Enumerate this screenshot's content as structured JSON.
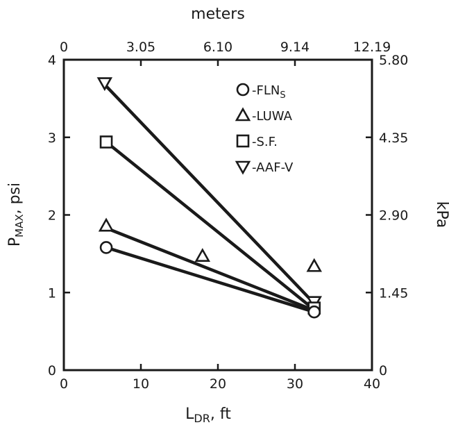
{
  "chart_data": {
    "type": "scatter",
    "xlabel": "L",
    "xlabel_sub": "DR",
    "xlabel_unit": ", ft",
    "ylabel": "P",
    "ylabel_sub": "MAX",
    "ylabel_unit": ", psi",
    "top_axis_label": "meters",
    "right_axis_label": "kPa",
    "xlim": [
      0,
      40
    ],
    "ylim": [
      0,
      4
    ],
    "x_ticks": [
      "0",
      "10",
      "20",
      "30",
      "40"
    ],
    "y_ticks": [
      "0",
      "1",
      "2",
      "3",
      "4"
    ],
    "top_ticks": [
      "0",
      "3.05",
      "6.10",
      "9.14",
      "12.19"
    ],
    "right_ticks": [
      "0",
      "1.45",
      "2.90",
      "4.35",
      "5.80"
    ],
    "grid": false,
    "legend_position": "top-right",
    "series": [
      {
        "name": "FLN",
        "name_sub": "S",
        "marker": "circle",
        "points": [
          [
            5.5,
            1.58
          ],
          [
            32.5,
            0.75
          ]
        ],
        "fit": [
          [
            5.5,
            1.58
          ],
          [
            32.5,
            0.75
          ]
        ]
      },
      {
        "name": "LUWA",
        "marker": "triangle-up",
        "points": [
          [
            5.5,
            1.86
          ],
          [
            18,
            1.47
          ],
          [
            32.5,
            1.34
          ]
        ],
        "fit": [
          [
            5.5,
            1.83
          ],
          [
            32.5,
            0.77
          ]
        ]
      },
      {
        "name": "S.F.",
        "marker": "square",
        "points": [
          [
            5.5,
            2.94
          ],
          [
            32.5,
            0.8
          ]
        ],
        "fit": [
          [
            5.5,
            2.94
          ],
          [
            32.5,
            0.78
          ]
        ]
      },
      {
        "name": "AAF-V",
        "marker": "triangle-down",
        "points": [
          [
            5.3,
            3.7
          ],
          [
            32.5,
            0.88
          ]
        ],
        "fit": [
          [
            5.3,
            3.68
          ],
          [
            32.5,
            0.86
          ]
        ]
      }
    ]
  }
}
